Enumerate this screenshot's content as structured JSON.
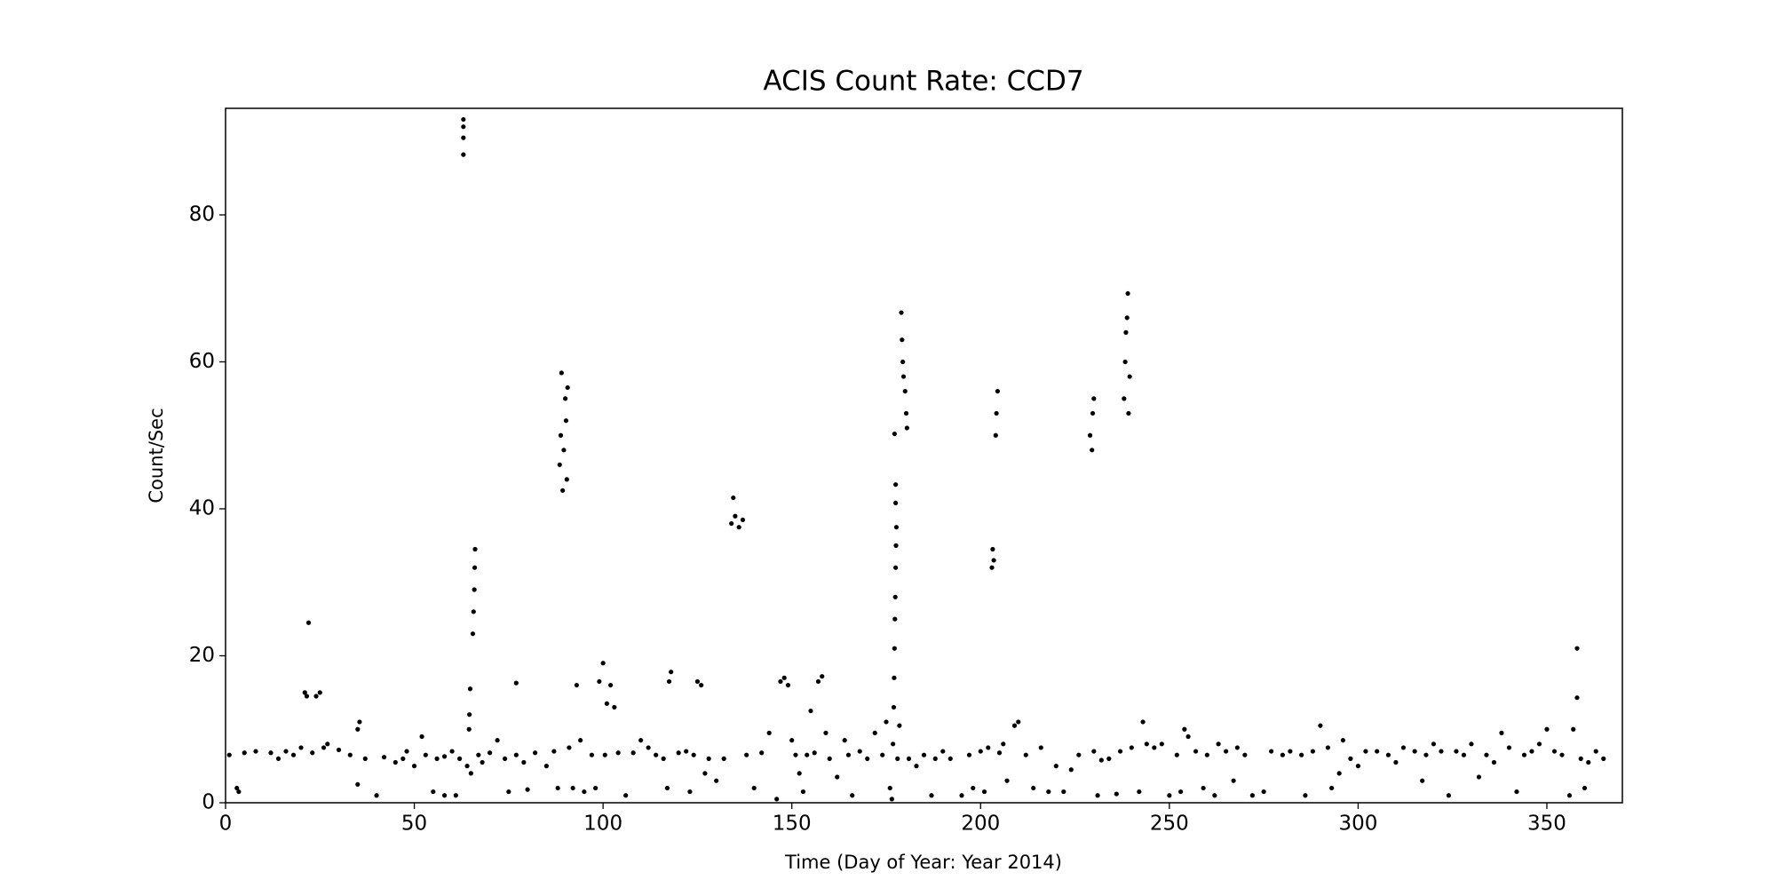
{
  "chart_data": {
    "type": "scatter",
    "title": "ACIS Count Rate: CCD7",
    "xlabel": "Time (Day of Year: Year 2014)",
    "ylabel": "Count/Sec",
    "color": "#000000",
    "grid": false,
    "xlim": [
      0,
      370
    ],
    "ylim": [
      0,
      94.5
    ],
    "xticks": [
      0,
      50,
      100,
      150,
      200,
      250,
      300,
      350
    ],
    "yticks": [
      0,
      20,
      40,
      60,
      80
    ],
    "x": [
      1,
      3,
      3.5,
      5,
      8,
      12,
      14,
      16,
      18,
      20,
      21,
      21.5,
      22,
      23,
      24,
      25,
      26,
      27,
      30,
      33,
      35,
      35.5,
      35,
      37,
      40,
      42,
      45,
      47,
      48,
      50,
      52,
      53,
      55,
      56,
      58,
      58,
      60,
      61,
      62,
      63,
      63,
      63,
      63,
      64,
      64.5,
      64.8,
      64.6,
      65,
      65.5,
      65.7,
      65.9,
      66,
      66.1,
      67,
      68,
      70,
      72,
      74,
      75,
      77,
      77,
      79,
      80,
      82,
      85,
      87,
      88,
      88.5,
      88.8,
      89,
      89.3,
      89.6,
      90,
      90.2,
      90.4,
      90.6,
      91,
      92,
      93,
      94,
      95,
      97,
      98,
      99,
      100,
      100.5,
      101,
      102,
      103,
      104,
      106,
      108,
      110,
      112,
      114,
      116,
      117,
      117.5,
      118,
      120,
      122,
      123,
      124,
      125,
      126,
      127,
      128,
      130,
      132,
      134,
      134.5,
      135,
      136,
      137,
      138,
      140,
      142,
      144,
      146,
      147,
      148,
      149,
      150,
      151,
      152,
      153,
      154,
      155,
      156,
      157,
      158,
      159,
      160,
      162,
      164,
      165,
      166,
      168,
      170,
      172,
      174,
      175,
      176,
      176.5,
      176.8,
      177,
      177.1,
      177.2,
      177.3,
      177.4,
      177.5,
      177.6,
      177.7,
      177.5,
      177.5,
      177.2,
      178,
      178.5,
      179,
      179.2,
      179.4,
      179.6,
      180,
      180.3,
      180.5,
      181,
      183,
      185,
      187,
      188,
      190,
      192,
      195,
      197,
      198,
      200,
      201,
      202,
      203,
      203.2,
      203.5,
      204,
      204.2,
      204.5,
      205,
      206,
      207,
      209,
      210,
      212,
      214,
      216,
      218,
      220,
      222,
      224,
      226,
      229,
      229.5,
      229.7,
      230,
      230,
      231,
      232,
      234,
      236,
      237,
      238,
      238.3,
      238.5,
      238.8,
      239,
      239.2,
      239.5,
      240,
      242,
      243,
      244,
      246,
      248,
      250,
      252,
      253,
      254,
      255,
      257,
      259,
      260,
      262,
      263,
      265,
      267,
      268,
      270,
      272,
      275,
      277,
      280,
      282,
      285,
      286,
      288,
      290,
      292,
      293,
      295,
      296,
      298,
      300,
      302,
      305,
      308,
      310,
      312,
      315,
      317,
      318,
      320,
      322,
      324,
      326,
      328,
      330,
      332,
      334,
      336,
      338,
      340,
      342,
      344,
      346,
      348,
      350,
      352,
      354,
      356,
      357,
      358,
      358,
      359,
      360,
      361,
      363,
      365
    ],
    "values": [
      6.5,
      2,
      1.5,
      6.8,
      7,
      6.8,
      6,
      7,
      6.5,
      7.5,
      15,
      14.5,
      24.5,
      6.8,
      14.5,
      15,
      7.5,
      8,
      7.2,
      6.5,
      10,
      11,
      2.5,
      6,
      1,
      6.2,
      5.5,
      6,
      7,
      5,
      9,
      6.5,
      1.5,
      6,
      6.3,
      1,
      7,
      1,
      6,
      93,
      92,
      90.5,
      88.2,
      5,
      10,
      15.5,
      12,
      4,
      23,
      26,
      29,
      32,
      34.5,
      6.5,
      5.5,
      6.8,
      8.5,
      6,
      1.5,
      16.3,
      6.5,
      5.5,
      1.8,
      6.8,
      5,
      7,
      2,
      46,
      50,
      58.5,
      42.5,
      48,
      55,
      52,
      44,
      56.5,
      7.5,
      2,
      16,
      8.5,
      1.5,
      6.5,
      2,
      16.5,
      19,
      6.5,
      13.5,
      16,
      13,
      6.8,
      1,
      6.8,
      8.5,
      7.5,
      6.5,
      6,
      2,
      16.5,
      17.8,
      6.8,
      7,
      1.5,
      6.5,
      16.5,
      16,
      4,
      6,
      3,
      6,
      38,
      41.5,
      39,
      37.5,
      38.5,
      6.5,
      2,
      6.8,
      9.5,
      0.5,
      16.5,
      17,
      16,
      8.5,
      6.5,
      4,
      1.5,
      6.5,
      12.5,
      6.8,
      16.5,
      17.2,
      9.5,
      6,
      3.5,
      8.5,
      6.5,
      1,
      7,
      6,
      9.5,
      6.5,
      11,
      2,
      0.5,
      8,
      13,
      17,
      21,
      25,
      28,
      32,
      35,
      37.5,
      40.8,
      43.3,
      50.2,
      6,
      10.5,
      66.7,
      63,
      60,
      58,
      56,
      53,
      51,
      6,
      5,
      6.5,
      1,
      6,
      7,
      6,
      1,
      6.5,
      2,
      7,
      1.5,
      7.5,
      32,
      34.5,
      33,
      50,
      53,
      56,
      6.8,
      8,
      3,
      10.5,
      11,
      6.5,
      2,
      7.5,
      1.5,
      5,
      1.5,
      4.5,
      6.5,
      50,
      48,
      53,
      55,
      7,
      1,
      5.8,
      6,
      1.2,
      7,
      55,
      60,
      64,
      66,
      69.3,
      53,
      58,
      7.5,
      1.5,
      11,
      8,
      7.5,
      8,
      1,
      6.5,
      1.5,
      10,
      9,
      7,
      2,
      6.5,
      1,
      8,
      7,
      3,
      7.5,
      6.5,
      1,
      1.5,
      7,
      6.5,
      7,
      6.5,
      1,
      7,
      10.5,
      7.5,
      2,
      4,
      8.5,
      6,
      5,
      7,
      7,
      6.5,
      5.5,
      7.5,
      7,
      3,
      6.5,
      8,
      7,
      1,
      7,
      6.5,
      8,
      3.5,
      6.5,
      5.5,
      9.5,
      7.5,
      1.5,
      6.5,
      7,
      8,
      10,
      7,
      6.5,
      1,
      10,
      21,
      14.3,
      6,
      2,
      5.5,
      7,
      6
    ]
  }
}
